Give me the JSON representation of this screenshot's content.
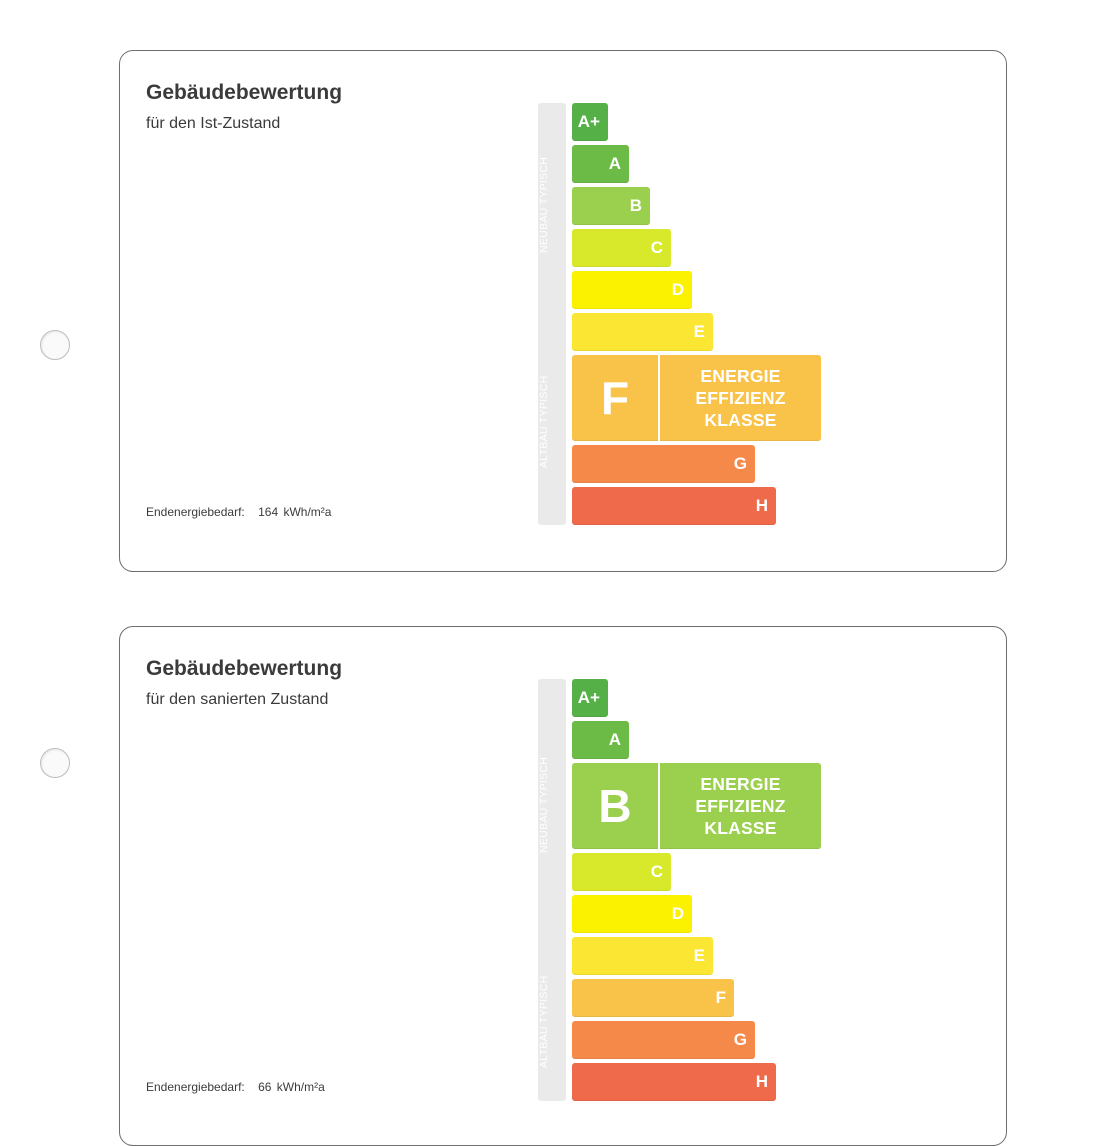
{
  "colors": {
    "A+": "#55b048",
    "A": "#6dbb47",
    "B": "#9bd04e",
    "C": "#d7e92a",
    "D": "#fbf200",
    "E": "#fbe733",
    "F": "#f9c248",
    "G": "#f5894a",
    "H": "#ee6a4a"
  },
  "cards": [
    {
      "title": "Gebäudebewertung",
      "subtitle": "für den Ist-Zustand",
      "demand_label": "Endenergiebedarf:",
      "demand_value": "164",
      "demand_unit": "kWh/m²a",
      "active_class": "F",
      "active_text": [
        "ENERGIE",
        "EFFIZIENZ",
        "KLASSE"
      ],
      "side_labels": {
        "neubau": "NEUBAU TYPISCH",
        "altbau": "ALTBAU TYPISCH"
      }
    },
    {
      "title": "Gebäudebewertung",
      "subtitle": "für den sanierten Zustand",
      "demand_label": "Endenergiebedarf:",
      "demand_value": "66",
      "demand_unit": "kWh/m²a",
      "active_class": "B",
      "active_text": [
        "ENERGIE",
        "EFFIZIENZ",
        "KLASSE"
      ],
      "side_labels": {
        "neubau": "NEUBAU TYPISCH",
        "altbau": "ALTBAU TYPISCH"
      }
    }
  ],
  "classes": [
    "A+",
    "A",
    "B",
    "C",
    "D",
    "E",
    "F",
    "G",
    "H"
  ]
}
